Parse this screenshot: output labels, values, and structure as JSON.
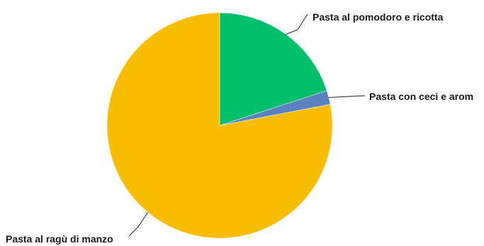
{
  "chart_data": {
    "type": "pie",
    "slices": [
      {
        "label": "Pasta al pomodoro e ricotta",
        "value": 20,
        "color": "#00c06b"
      },
      {
        "label": "Pasta con ceci e arom",
        "value": 2,
        "color": "#5b82c0"
      },
      {
        "label": "Pasta al ragù di manzo",
        "value": 78,
        "color": "#f9bd00"
      }
    ],
    "start_position": "top, clockwise",
    "legend": "none (labels with leader lines)"
  }
}
